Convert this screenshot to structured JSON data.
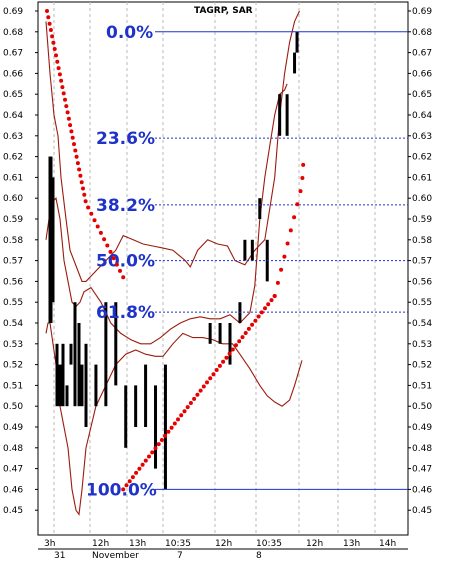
{
  "chart_data": {
    "type": "line",
    "title": "TAGRP, SAR",
    "ylim": [
      0.44,
      0.69
    ],
    "y_ticks": [
      "0.69",
      "0.68",
      "0.67",
      "0.66",
      "0.65",
      "0.64",
      "0.63",
      "0.62",
      "0.61",
      "0.60",
      "0.59",
      "0.58",
      "0.57",
      "0.56",
      "0.55",
      "0.54",
      "0.53",
      "0.52",
      "0.51",
      "0.50",
      "0.49",
      "0.48",
      "0.47",
      "0.46",
      "0.45"
    ],
    "x_ticks": [
      "3h",
      "12h",
      "13h",
      "10:35",
      "12h",
      "10:35",
      "12h",
      "13h",
      "14h"
    ],
    "x_date_labels": [
      "31",
      "November",
      "7",
      "8"
    ],
    "fibonacci_levels": [
      {
        "label": "0.0%",
        "value": 0.68
      },
      {
        "label": "23.6%",
        "value": 0.6289
      },
      {
        "label": "38.2%",
        "value": 0.5968
      },
      {
        "label": "50.0%",
        "value": 0.57
      },
      {
        "label": "61.8%",
        "value": 0.5452
      },
      {
        "label": "100.0%",
        "value": 0.46
      }
    ],
    "series": [
      {
        "kind": "upper_band",
        "points": [
          [
            0,
            0.685
          ],
          [
            4,
            0.66
          ],
          [
            8,
            0.64
          ],
          [
            12,
            0.63
          ],
          [
            15,
            0.61
          ],
          [
            20,
            0.59
          ],
          [
            24,
            0.575
          ],
          [
            28,
            0.57
          ],
          [
            32,
            0.565
          ],
          [
            36,
            0.56
          ],
          [
            40,
            0.56
          ],
          [
            44,
            0.565
          ],
          [
            48,
            0.57
          ],
          [
            52,
            0.575
          ],
          [
            55,
            0.582
          ],
          [
            59,
            0.58
          ],
          [
            63,
            0.578
          ],
          [
            67,
            0.577
          ],
          [
            71,
            0.576
          ],
          [
            75,
            0.575
          ],
          [
            77,
            0.573
          ],
          [
            80,
            0.57
          ],
          [
            82,
            0.567
          ],
          [
            85,
            0.575
          ],
          [
            89,
            0.58
          ],
          [
            93,
            0.578
          ],
          [
            97,
            0.577
          ],
          [
            100,
            0.57
          ],
          [
            104,
            0.568
          ],
          [
            108,
            0.575
          ],
          [
            112,
            0.58
          ],
          [
            116,
            0.61
          ],
          [
            118,
            0.64
          ],
          [
            120,
            0.66
          ],
          [
            122,
            0.675
          ],
          [
            124,
            0.685
          ],
          [
            126,
            0.69
          ]
        ]
      },
      {
        "kind": "lower_band",
        "points": [
          [
            0,
            0.535
          ],
          [
            2,
            0.54
          ],
          [
            4,
            0.54
          ],
          [
            7,
            0.53
          ],
          [
            10,
            0.52
          ],
          [
            14,
            0.5
          ],
          [
            18,
            0.49
          ],
          [
            22,
            0.48
          ],
          [
            26,
            0.46
          ],
          [
            30,
            0.45
          ],
          [
            33,
            0.448
          ],
          [
            36,
            0.46
          ],
          [
            40,
            0.48
          ],
          [
            44,
            0.5
          ],
          [
            48,
            0.51
          ],
          [
            52,
            0.52
          ],
          [
            56,
            0.525
          ],
          [
            60,
            0.527
          ],
          [
            64,
            0.525
          ],
          [
            68,
            0.524
          ],
          [
            71,
            0.524
          ],
          [
            75,
            0.53
          ],
          [
            79,
            0.535
          ],
          [
            83,
            0.533
          ],
          [
            87,
            0.533
          ],
          [
            91,
            0.532
          ],
          [
            95,
            0.53
          ],
          [
            99,
            0.53
          ],
          [
            102,
            0.525
          ],
          [
            106,
            0.518
          ],
          [
            110,
            0.51
          ],
          [
            113,
            0.505
          ],
          [
            116,
            0.502
          ],
          [
            119,
            0.5
          ],
          [
            122,
            0.503
          ],
          [
            124,
            0.51
          ],
          [
            126,
            0.518
          ],
          [
            127,
            0.522
          ]
        ]
      },
      {
        "kind": "mid_line",
        "points": [
          [
            0,
            0.58
          ],
          [
            3,
            0.59
          ],
          [
            6,
            0.598
          ],
          [
            10,
            0.6
          ],
          [
            14,
            0.59
          ],
          [
            18,
            0.57
          ],
          [
            22,
            0.56
          ],
          [
            26,
            0.55
          ],
          [
            30,
            0.548
          ],
          [
            34,
            0.55
          ],
          [
            38,
            0.555
          ],
          [
            42,
            0.557
          ],
          [
            46,
            0.55
          ],
          [
            50,
            0.54
          ],
          [
            54,
            0.535
          ],
          [
            58,
            0.532
          ],
          [
            62,
            0.53
          ],
          [
            66,
            0.53
          ],
          [
            70,
            0.533
          ],
          [
            74,
            0.537
          ],
          [
            78,
            0.54
          ],
          [
            82,
            0.542
          ],
          [
            86,
            0.543
          ],
          [
            90,
            0.542
          ],
          [
            94,
            0.542
          ],
          [
            98,
            0.544
          ],
          [
            102,
            0.54
          ],
          [
            106,
            0.545
          ],
          [
            108,
            0.558
          ],
          [
            110,
            0.59
          ],
          [
            112,
            0.61
          ],
          [
            114,
            0.625
          ],
          [
            116,
            0.64
          ],
          [
            118,
            0.65
          ],
          [
            120,
            0.652
          ],
          [
            121,
            0.655
          ]
        ]
      }
    ],
    "sar_segments": [
      {
        "from": [
          1,
          0.69
        ],
        "to": [
          55,
          0.562
        ]
      },
      {
        "from": [
          55,
          0.46
        ],
        "to": [
          116,
          0.553
        ]
      },
      {
        "from": [
          116,
          0.553
        ],
        "to": [
          129,
          0.616
        ]
      }
    ],
    "bars": [
      [
        4,
        0.54,
        0.62
      ],
      [
        5,
        0.54,
        0.62
      ],
      [
        7,
        0.55,
        0.61
      ],
      [
        11,
        0.5,
        0.53
      ],
      [
        14,
        0.5,
        0.52
      ],
      [
        17,
        0.5,
        0.53
      ],
      [
        21,
        0.5,
        0.51
      ],
      [
        25,
        0.52,
        0.53
      ],
      [
        29,
        0.5,
        0.55
      ],
      [
        33,
        0.5,
        0.54
      ],
      [
        36,
        0.5,
        0.52
      ],
      [
        40,
        0.49,
        0.53
      ],
      [
        44,
        0.5,
        0.52
      ],
      [
        48,
        0.5,
        0.55
      ],
      [
        52,
        0.51,
        0.55
      ],
      [
        56,
        0.48,
        0.51
      ],
      [
        60,
        0.49,
        0.51
      ],
      [
        64,
        0.49,
        0.52
      ],
      [
        68,
        0.47,
        0.51
      ],
      [
        72,
        0.46,
        0.52
      ],
      [
        90,
        0.53,
        0.54
      ],
      [
        94,
        0.53,
        0.54
      ],
      [
        98,
        0.52,
        0.54
      ],
      [
        102,
        0.54,
        0.55
      ],
      [
        104,
        0.57,
        0.58
      ],
      [
        107,
        0.57,
        0.58
      ],
      [
        110,
        0.59,
        0.6
      ],
      [
        113,
        0.56,
        0.58
      ],
      [
        118,
        0.63,
        0.65
      ],
      [
        121,
        0.63,
        0.65
      ],
      [
        124,
        0.66,
        0.67
      ],
      [
        125,
        0.67,
        0.68
      ]
    ]
  }
}
